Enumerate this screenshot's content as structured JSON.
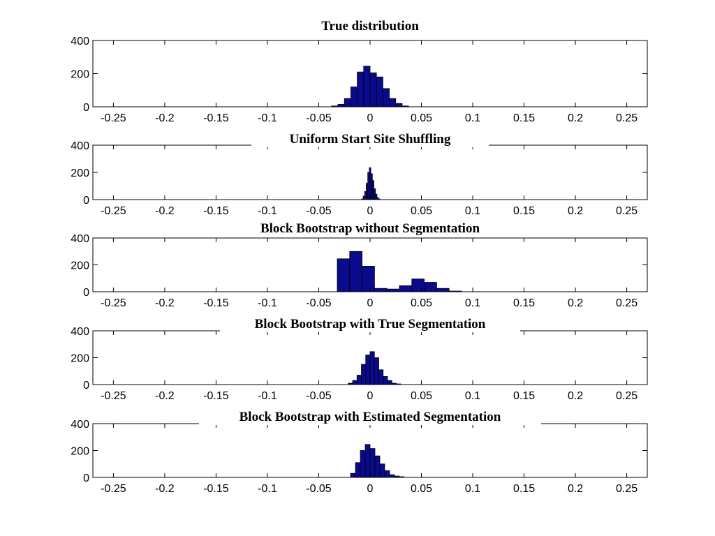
{
  "style": {
    "bar_fill": "#0a0a8c",
    "bar_edge": "#000000",
    "axes_color": "#000000",
    "background": "#ffffff"
  },
  "chart_data": [
    {
      "type": "bar",
      "title": "True distribution",
      "xlabel": "",
      "ylabel": "",
      "xlim": [
        -0.27,
        0.27
      ],
      "ylim": [
        0,
        400
      ],
      "xticks": [
        "-0.25",
        "-0.2",
        "-0.15",
        "-0.1",
        "-0.05",
        "0",
        "0.05",
        "0.1",
        "0.15",
        "0.2",
        "0.25"
      ],
      "yticks": [
        "0",
        "200",
        "400"
      ],
      "grid": false,
      "bin_width": 0.00625,
      "bin_centers": [
        -0.03438,
        -0.02813,
        -0.02188,
        -0.01563,
        -0.00938,
        -0.00313,
        0.00313,
        0.00938,
        0.01563,
        0.02188,
        0.02813,
        0.03438
      ],
      "values": [
        5,
        15,
        50,
        120,
        210,
        245,
        205,
        180,
        110,
        50,
        20,
        5
      ]
    },
    {
      "type": "bar",
      "title": "Uniform Start Site Shuffling",
      "xlabel": "",
      "ylabel": "",
      "xlim": [
        -0.27,
        0.27
      ],
      "ylim": [
        0,
        400
      ],
      "xticks": [
        "-0.25",
        "-0.2",
        "-0.15",
        "-0.1",
        "-0.05",
        "0",
        "0.05",
        "0.1",
        "0.15",
        "0.2",
        "0.25"
      ],
      "yticks": [
        "0",
        "200",
        "400"
      ],
      "grid": false,
      "bin_width": 0.0015,
      "bin_centers": [
        -0.0075,
        -0.006,
        -0.0045,
        -0.003,
        -0.0015,
        0.0,
        0.0015,
        0.003,
        0.0045,
        0.006,
        0.0075,
        0.009
      ],
      "values": [
        5,
        25,
        60,
        120,
        200,
        235,
        190,
        140,
        80,
        40,
        15,
        5
      ]
    },
    {
      "type": "bar",
      "title": "Block Bootstrap without Segmentation",
      "xlabel": "",
      "ylabel": "",
      "xlim": [
        -0.27,
        0.27
      ],
      "ylim": [
        0,
        400
      ],
      "xticks": [
        "-0.25",
        "-0.2",
        "-0.15",
        "-0.1",
        "-0.05",
        "0",
        "0.05",
        "0.1",
        "0.15",
        "0.2",
        "0.25"
      ],
      "yticks": [
        "0",
        "200",
        "400"
      ],
      "grid": false,
      "bin_width": 0.0121,
      "bin_centers": [
        -0.0259,
        -0.0138,
        -0.0017,
        0.0104,
        0.0225,
        0.0346,
        0.0467,
        0.0588,
        0.0709,
        0.083
      ],
      "values": [
        245,
        300,
        190,
        25,
        20,
        45,
        95,
        70,
        25,
        5
      ]
    },
    {
      "type": "bar",
      "title": "Block Bootstrap with True Segmentation",
      "xlabel": "",
      "ylabel": "",
      "xlim": [
        -0.27,
        0.27
      ],
      "ylim": [
        0,
        400
      ],
      "xticks": [
        "-0.25",
        "-0.2",
        "-0.15",
        "-0.1",
        "-0.05",
        "0",
        "0.05",
        "0.1",
        "0.15",
        "0.2",
        "0.25"
      ],
      "yticks": [
        "0",
        "200",
        "400"
      ],
      "grid": false,
      "bin_width": 0.00425,
      "bin_centers": [
        -0.01912,
        -0.01487,
        -0.01062,
        -0.00637,
        -0.00212,
        0.00212,
        0.00637,
        0.01062,
        0.01487,
        0.01912,
        0.02337,
        0.02762
      ],
      "values": [
        10,
        30,
        70,
        150,
        220,
        245,
        200,
        110,
        60,
        30,
        10,
        5
      ]
    },
    {
      "type": "bar",
      "title": "Block Bootstrap with Estimated Segmentation",
      "xlabel": "",
      "ylabel": "",
      "xlim": [
        -0.27,
        0.27
      ],
      "ylim": [
        0,
        400
      ],
      "xticks": [
        "-0.25",
        "-0.2",
        "-0.15",
        "-0.1",
        "-0.05",
        "0",
        "0.05",
        "0.1",
        "0.15",
        "0.2",
        "0.25"
      ],
      "yticks": [
        "0",
        "200",
        "400"
      ],
      "grid": false,
      "bin_width": 0.00475,
      "bin_centers": [
        -0.01662,
        -0.01187,
        -0.00712,
        -0.00237,
        0.00237,
        0.00712,
        0.01187,
        0.01662,
        0.02137,
        0.02612,
        0.03087
      ],
      "values": [
        30,
        110,
        200,
        245,
        215,
        160,
        100,
        50,
        20,
        10,
        5
      ]
    }
  ]
}
